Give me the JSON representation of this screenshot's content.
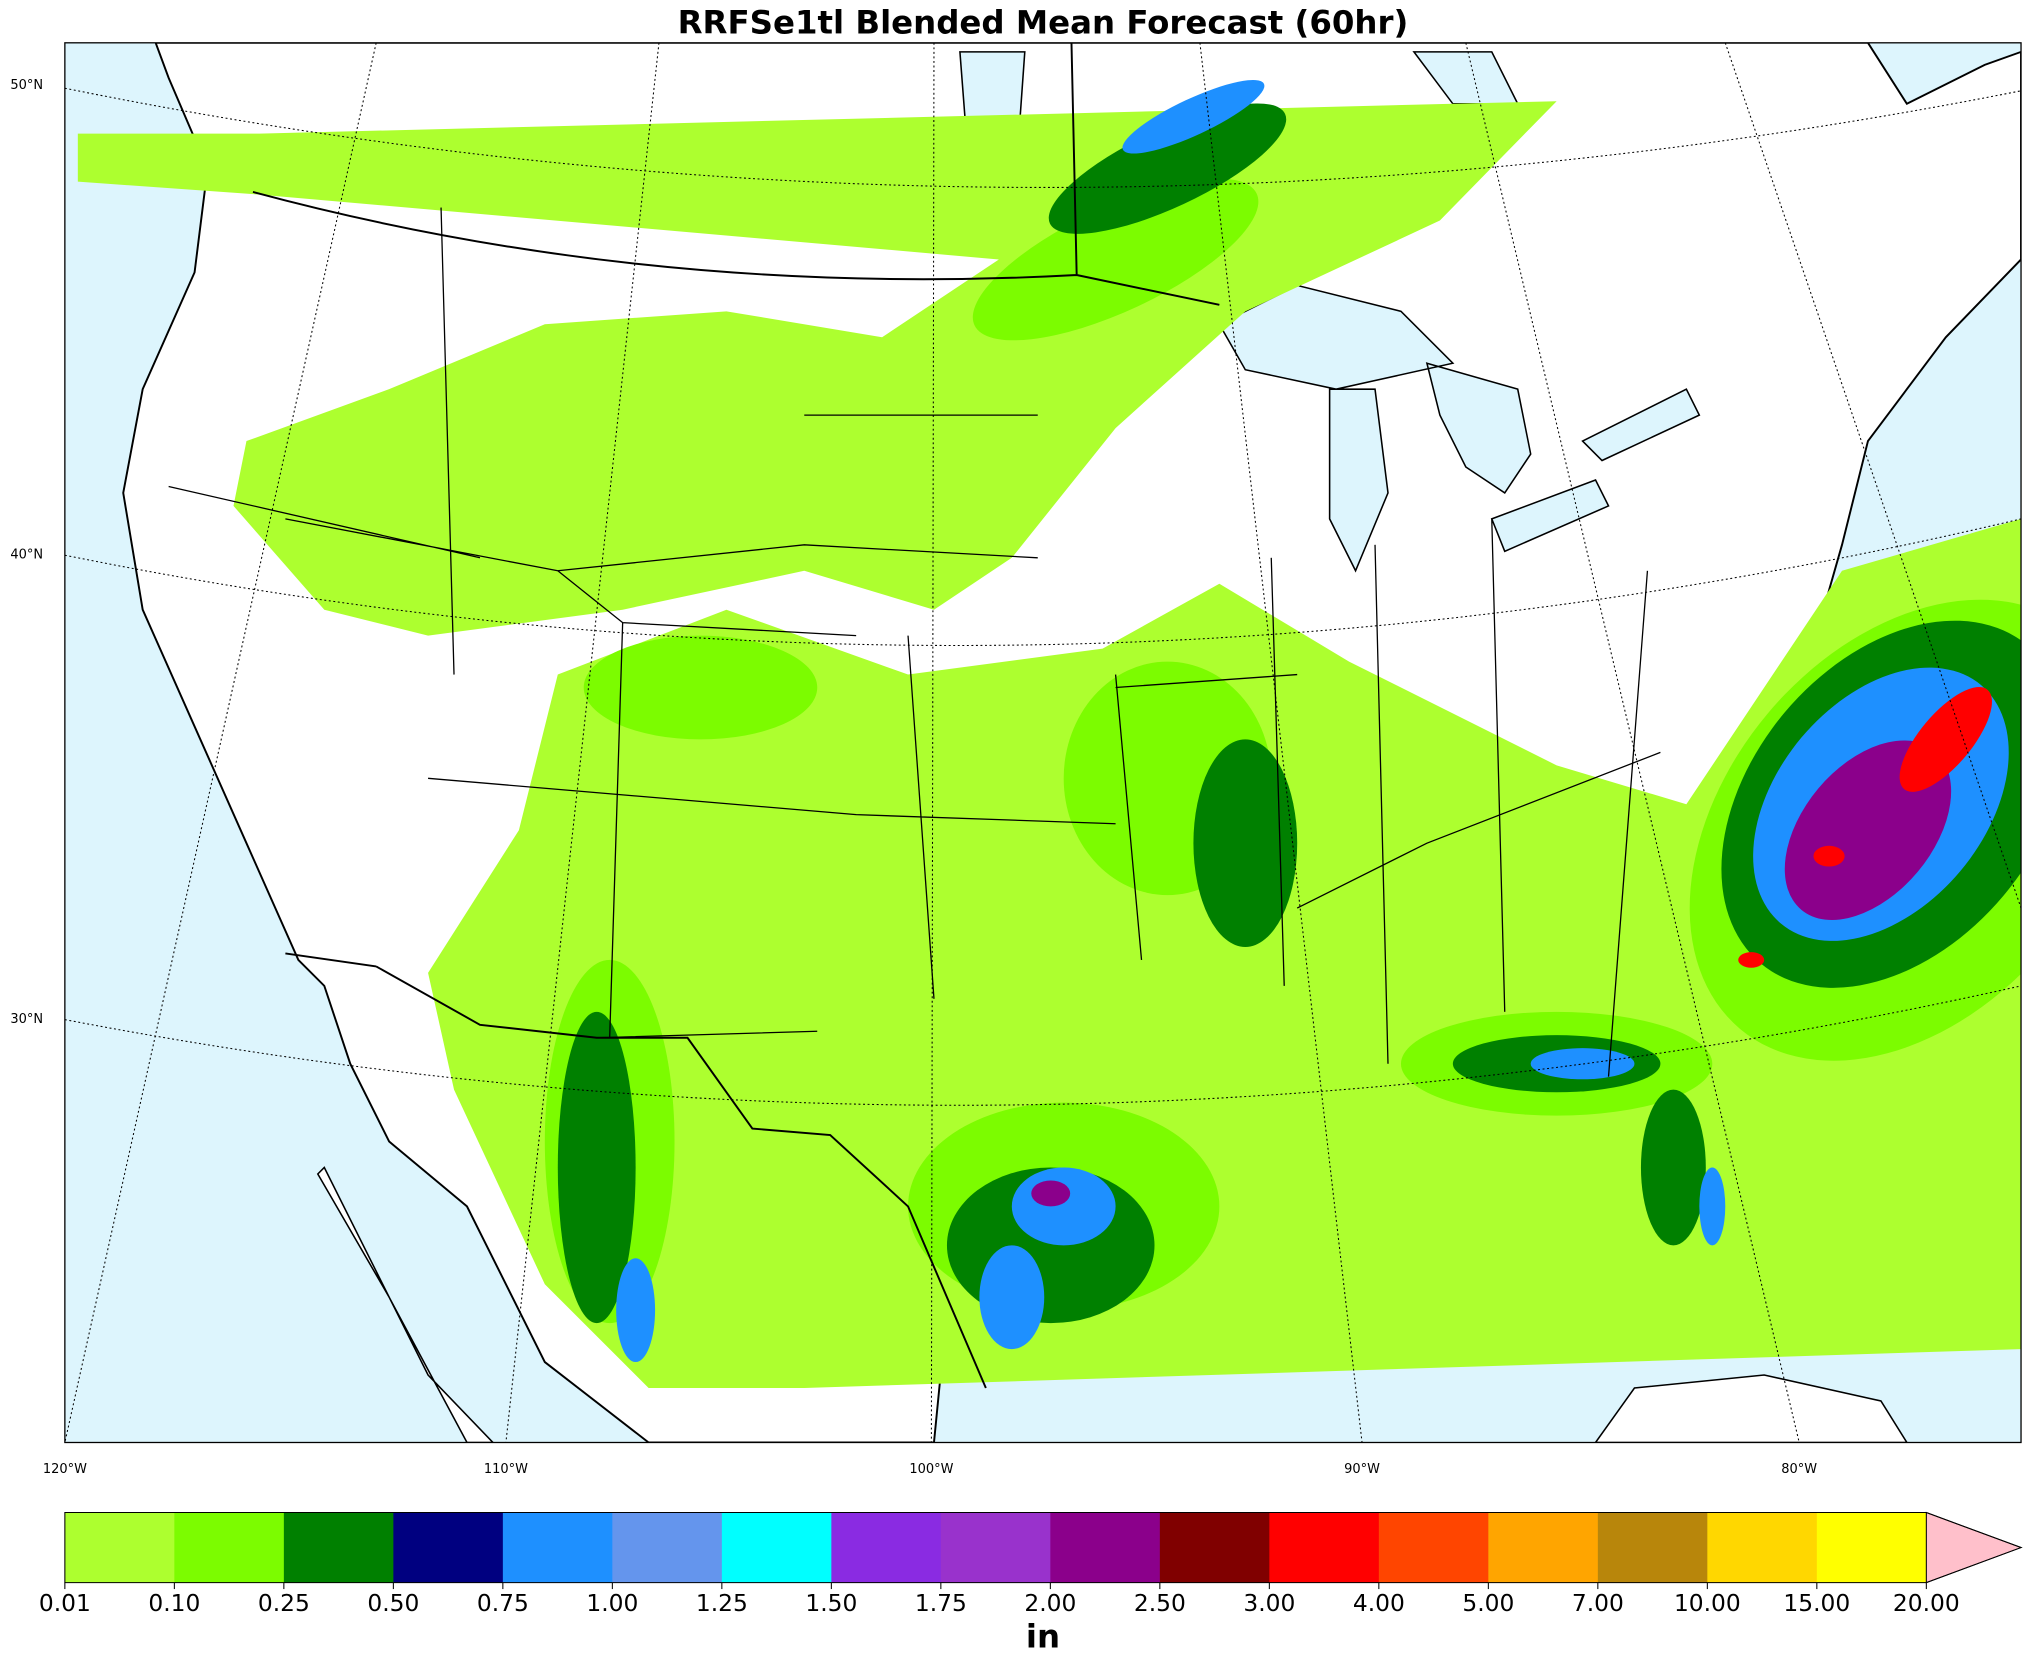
{
  "title": "RRFSe1tl Blended Mean Forecast (60hr)",
  "map": {
    "lat_labels": [
      "50°N",
      "40°N",
      "30°N"
    ],
    "lon_labels": [
      "120°W",
      "110°W",
      "100°W",
      "90°W",
      "80°W"
    ]
  },
  "colorbar": {
    "label": "in",
    "ticks": [
      0.01,
      {
        "value": 0.1,
        "label": "0.10"
      },
      0.25,
      {
        "value": 0.5,
        "label": "0.50"
      },
      0.75,
      {
        "value": 1,
        "label": "1.00"
      },
      1.25,
      {
        "value": 1.5,
        "label": "1.50"
      },
      1.75,
      {
        "value": 2,
        "label": "2.00"
      },
      {
        "value": 2.5,
        "label": "2.50"
      },
      {
        "value": 3,
        "label": "3.00"
      },
      {
        "value": 4,
        "label": "4.00"
      },
      {
        "value": 5,
        "label": "5.00"
      },
      {
        "value": 7,
        "label": "7.00"
      },
      {
        "value": 10,
        "label": "10.00"
      },
      {
        "value": 15,
        "label": "15.00"
      },
      {
        "value": 20,
        "label": "20.00"
      }
    ],
    "colors": [
      "#adff2f",
      "#7cfc00",
      "#008000",
      "#000080",
      "#1e90ff",
      "#6495ed",
      "#00ffff",
      "#8a2be2",
      "#9932cc",
      "#8b008b",
      "#800000",
      "#ff0000",
      "#ff4500",
      "#ffa500",
      "#b8860b",
      "#ffd700",
      "#ffff00"
    ],
    "extend_color": "#ffc0cb"
  }
}
